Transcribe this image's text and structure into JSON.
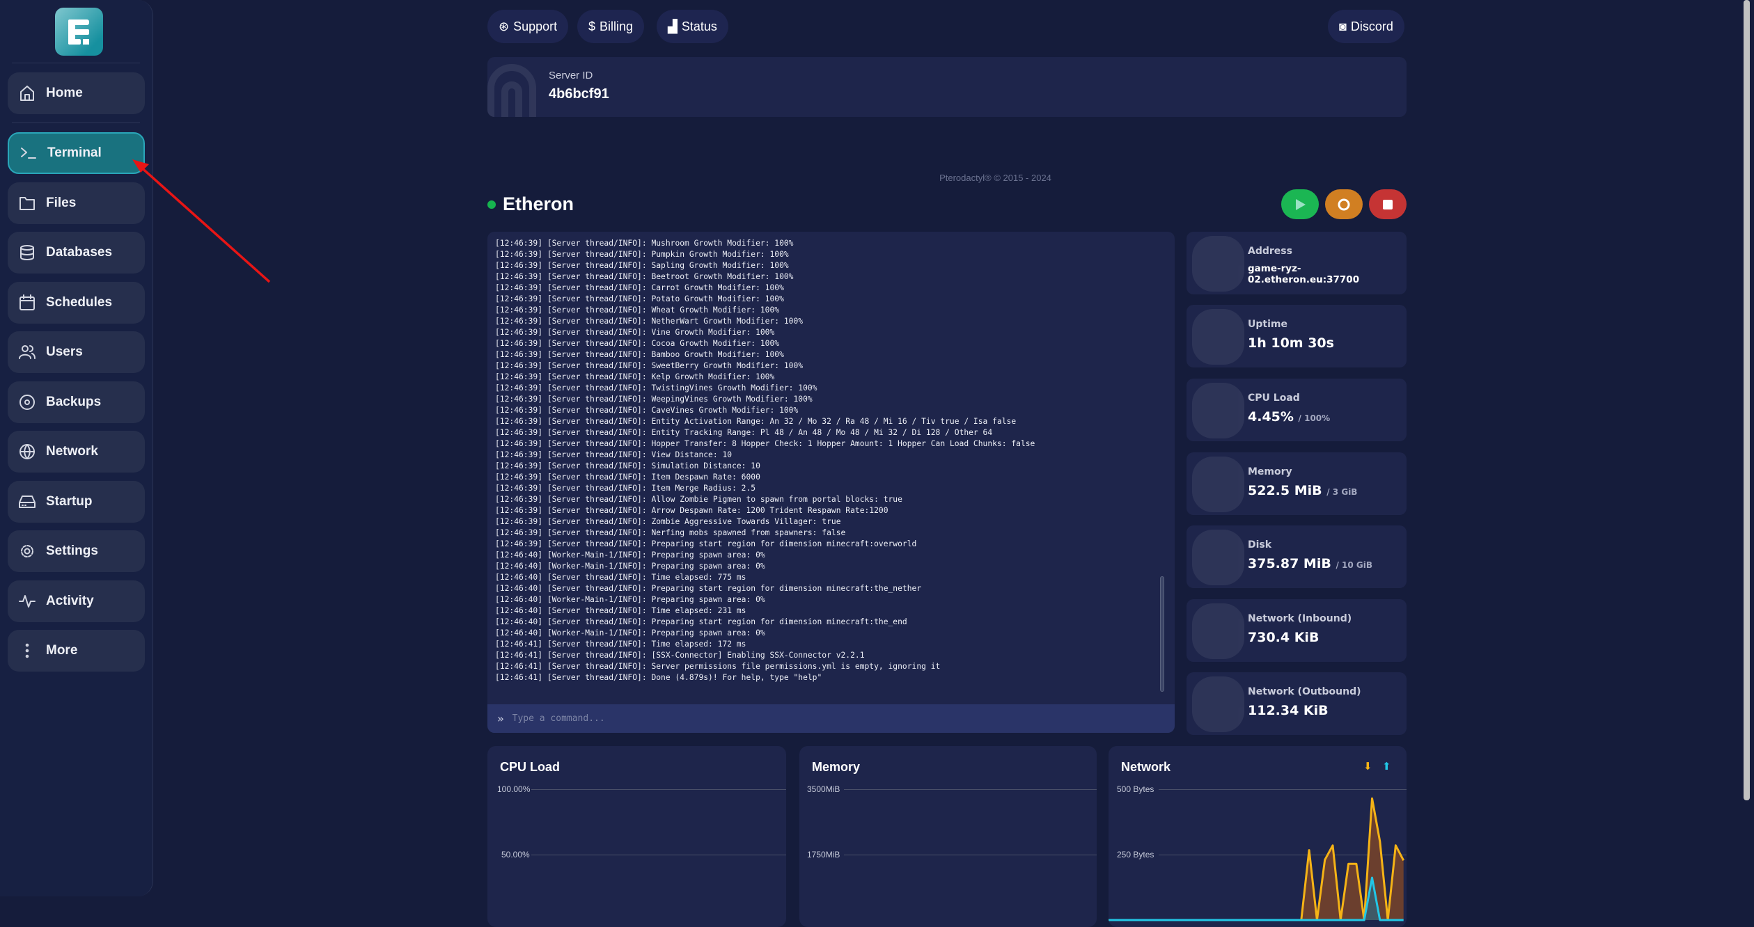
{
  "sidebar": {
    "items": [
      {
        "label": "Home",
        "icon": "home-icon"
      },
      {
        "label": "Terminal",
        "icon": "terminal-icon",
        "active": true
      },
      {
        "label": "Files",
        "icon": "folder-icon"
      },
      {
        "label": "Databases",
        "icon": "database-icon"
      },
      {
        "label": "Schedules",
        "icon": "calendar-icon"
      },
      {
        "label": "Users",
        "icon": "users-icon"
      },
      {
        "label": "Backups",
        "icon": "disc-icon"
      },
      {
        "label": "Network",
        "icon": "globe-icon"
      },
      {
        "label": "Startup",
        "icon": "hard-drive-icon"
      },
      {
        "label": "Settings",
        "icon": "gear-icon"
      },
      {
        "label": "Activity",
        "icon": "activity-icon"
      },
      {
        "label": "More",
        "icon": "more-vertical-icon"
      }
    ]
  },
  "topbar": {
    "support": "Support",
    "billing": "Billing",
    "status": "Status",
    "discord": "Discord"
  },
  "server_id": {
    "label": "Server ID",
    "value": "4b6bcf91"
  },
  "footer": "Pterodactyl® © 2015 - 2024",
  "server": {
    "name": "Etheron",
    "status_color": "#16b34f"
  },
  "power": {
    "start_color": "#1bb653",
    "restart_color": "#d17f22",
    "stop_color": "#c53434"
  },
  "console": {
    "lines": [
      "[12:46:39] [Server thread/INFO]: Mushroom Growth Modifier: 100%",
      "[12:46:39] [Server thread/INFO]: Pumpkin Growth Modifier: 100%",
      "[12:46:39] [Server thread/INFO]: Sapling Growth Modifier: 100%",
      "[12:46:39] [Server thread/INFO]: Beetroot Growth Modifier: 100%",
      "[12:46:39] [Server thread/INFO]: Carrot Growth Modifier: 100%",
      "[12:46:39] [Server thread/INFO]: Potato Growth Modifier: 100%",
      "[12:46:39] [Server thread/INFO]: Wheat Growth Modifier: 100%",
      "[12:46:39] [Server thread/INFO]: NetherWart Growth Modifier: 100%",
      "[12:46:39] [Server thread/INFO]: Vine Growth Modifier: 100%",
      "[12:46:39] [Server thread/INFO]: Cocoa Growth Modifier: 100%",
      "[12:46:39] [Server thread/INFO]: Bamboo Growth Modifier: 100%",
      "[12:46:39] [Server thread/INFO]: SweetBerry Growth Modifier: 100%",
      "[12:46:39] [Server thread/INFO]: Kelp Growth Modifier: 100%",
      "[12:46:39] [Server thread/INFO]: TwistingVines Growth Modifier: 100%",
      "[12:46:39] [Server thread/INFO]: WeepingVines Growth Modifier: 100%",
      "[12:46:39] [Server thread/INFO]: CaveVines Growth Modifier: 100%",
      "[12:46:39] [Server thread/INFO]: Entity Activation Range: An 32 / Mo 32 / Ra 48 / Mi 16 / Tiv true / Isa false",
      "[12:46:39] [Server thread/INFO]: Entity Tracking Range: Pl 48 / An 48 / Mo 48 / Mi 32 / Di 128 / Other 64",
      "[12:46:39] [Server thread/INFO]: Hopper Transfer: 8 Hopper Check: 1 Hopper Amount: 1 Hopper Can Load Chunks: false",
      "[12:46:39] [Server thread/INFO]: View Distance: 10",
      "[12:46:39] [Server thread/INFO]: Simulation Distance: 10",
      "[12:46:39] [Server thread/INFO]: Item Despawn Rate: 6000",
      "[12:46:39] [Server thread/INFO]: Item Merge Radius: 2.5",
      "[12:46:39] [Server thread/INFO]: Allow Zombie Pigmen to spawn from portal blocks: true",
      "[12:46:39] [Server thread/INFO]: Arrow Despawn Rate: 1200 Trident Respawn Rate:1200",
      "[12:46:39] [Server thread/INFO]: Zombie Aggressive Towards Villager: true",
      "[12:46:39] [Server thread/INFO]: Nerfing mobs spawned from spawners: false",
      "[12:46:39] [Server thread/INFO]: Preparing start region for dimension minecraft:overworld",
      "[12:46:40] [Worker-Main-1/INFO]: Preparing spawn area: 0%",
      "[12:46:40] [Worker-Main-1/INFO]: Preparing spawn area: 0%",
      "[12:46:40] [Server thread/INFO]: Time elapsed: 775 ms",
      "[12:46:40] [Server thread/INFO]: Preparing start region for dimension minecraft:the_nether",
      "[12:46:40] [Worker-Main-1/INFO]: Preparing spawn area: 0%",
      "[12:46:40] [Server thread/INFO]: Time elapsed: 231 ms",
      "[12:46:40] [Server thread/INFO]: Preparing start region for dimension minecraft:the_end",
      "[12:46:40] [Worker-Main-1/INFO]: Preparing spawn area: 0%",
      "[12:46:41] [Server thread/INFO]: Time elapsed: 172 ms",
      "[12:46:41] [Server thread/INFO]: [SSX-Connector] Enabling SSX-Connector v2.2.1",
      "[12:46:41] [Server thread/INFO]: Server permissions file permissions.yml is empty, ignoring it",
      "[12:46:41] [Server thread/INFO]: Done (4.879s)! For help, type \"help\""
    ],
    "placeholder": "Type a command..."
  },
  "stats": [
    {
      "label": "Address",
      "value": "game-ryz-02.etheron.eu:37700",
      "icon": "wifi-icon"
    },
    {
      "label": "Uptime",
      "value": "1h 10m 30s",
      "icon": "clock-icon"
    },
    {
      "label": "CPU Load",
      "value": "4.45%",
      "limit": "/ 100%",
      "icon": "cpu-icon"
    },
    {
      "label": "Memory",
      "value": "522.5 MiB",
      "limit": "/ 3 GiB",
      "icon": "memory-icon"
    },
    {
      "label": "Disk",
      "value": "375.87 MiB",
      "limit": "/ 10 GiB",
      "icon": "hdd-icon"
    },
    {
      "label": "Network (Inbound)",
      "value": "730.4 KiB",
      "icon": "cloud-download-icon"
    },
    {
      "label": "Network (Outbound)",
      "value": "112.34 KiB",
      "icon": "cloud-upload-icon"
    }
  ],
  "chart_data": [
    {
      "type": "line",
      "title": "CPU Load",
      "yticks": [
        "100.00%",
        "50.00%"
      ],
      "ylim": [
        0,
        100
      ],
      "series": []
    },
    {
      "type": "line",
      "title": "Memory",
      "yticks": [
        "3500MiB",
        "1750MiB"
      ],
      "ylim": [
        0,
        3500
      ],
      "series": []
    },
    {
      "type": "area",
      "title": "Network",
      "yticks": [
        "500 Bytes",
        "250 Bytes"
      ],
      "ylim": [
        0,
        500
      ],
      "legend_icons": [
        {
          "icon": "cloud-download-icon",
          "color": "#f5b316"
        },
        {
          "icon": "cloud-upload-icon",
          "color": "#22c7e6"
        }
      ],
      "series": [
        {
          "color": "#f5b316",
          "fill": "#6b3f2e",
          "values": [
            0,
            0,
            0,
            0,
            0,
            0,
            0,
            0,
            0,
            0,
            0,
            0,
            0,
            0,
            0,
            0,
            0,
            0,
            0,
            0,
            0,
            0,
            0,
            0,
            0,
            0,
            0,
            0,
            0,
            0,
            0,
            0,
            0,
            0,
            0,
            0,
            0,
            267,
            0,
            230,
            285,
            0,
            215,
            215,
            0,
            465,
            300,
            0,
            285,
            228
          ]
        },
        {
          "color": "#22c7e6",
          "fill": "#3f5a66",
          "values": [
            0,
            0,
            0,
            0,
            0,
            0,
            0,
            0,
            0,
            0,
            0,
            0,
            0,
            0,
            0,
            0,
            0,
            0,
            0,
            0,
            0,
            0,
            0,
            0,
            0,
            0,
            0,
            0,
            0,
            0,
            0,
            0,
            0,
            0,
            0,
            0,
            0,
            0,
            0,
            0,
            0,
            0,
            0,
            0,
            0,
            162,
            0,
            0,
            0,
            0
          ]
        }
      ]
    }
  ]
}
